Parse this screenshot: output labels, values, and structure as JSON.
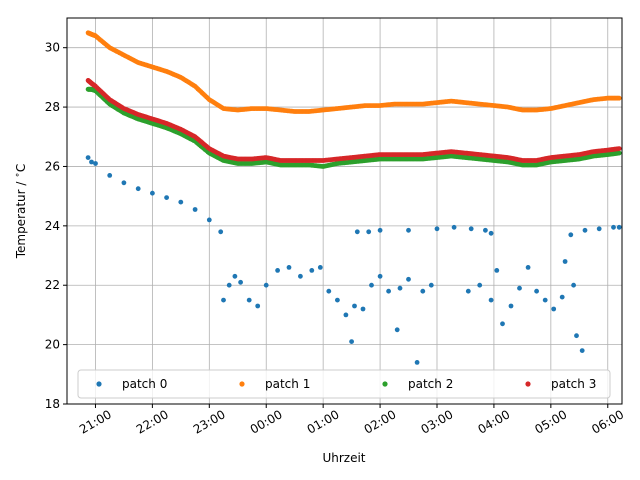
{
  "chart_data": {
    "type": "scatter",
    "xlabel": "Uhrzeit",
    "ylabel": "Temperatur / °C",
    "ylabel_parts": {
      "main": "Temperatur / ",
      "degree": "∘",
      "unit": "C"
    },
    "x_ticks": [
      "21:00",
      "22:00",
      "23:00",
      "00:00",
      "01:00",
      "02:00",
      "03:00",
      "04:00",
      "05:00",
      "06:00"
    ],
    "y_ticks": [
      "18",
      "20",
      "22",
      "24",
      "26",
      "28",
      "30"
    ],
    "x_range_hours": [
      20.5,
      30.25
    ],
    "x_tick_hours": [
      21,
      22,
      23,
      24,
      25,
      26,
      27,
      28,
      29,
      30
    ],
    "ylim": [
      18,
      31
    ],
    "grid": true,
    "legend_position": "bottom",
    "legend": [
      "patch 0",
      "patch 1",
      "patch 2",
      "patch 3"
    ],
    "series": [
      {
        "name": "patch 0",
        "color": "#1f77b4",
        "points": [
          [
            20.87,
            26.3
          ],
          [
            20.93,
            26.15
          ],
          [
            21.0,
            26.1
          ],
          [
            21.25,
            25.7
          ],
          [
            21.5,
            25.45
          ],
          [
            21.75,
            25.25
          ],
          [
            22.0,
            25.1
          ],
          [
            22.25,
            24.95
          ],
          [
            22.5,
            24.8
          ],
          [
            22.75,
            24.55
          ],
          [
            23.0,
            24.2
          ],
          [
            23.2,
            23.8
          ],
          [
            23.25,
            21.5
          ],
          [
            23.35,
            22.0
          ],
          [
            23.45,
            22.3
          ],
          [
            23.55,
            22.1
          ],
          [
            23.7,
            21.5
          ],
          [
            23.85,
            21.3
          ],
          [
            24.0,
            22.0
          ],
          [
            24.2,
            22.5
          ],
          [
            24.4,
            22.6
          ],
          [
            24.6,
            22.3
          ],
          [
            24.8,
            22.5
          ],
          [
            24.95,
            22.6
          ],
          [
            25.1,
            21.8
          ],
          [
            25.25,
            21.5
          ],
          [
            25.4,
            21.0
          ],
          [
            25.55,
            21.3
          ],
          [
            25.7,
            21.2
          ],
          [
            25.85,
            22.0
          ],
          [
            26.0,
            22.3
          ],
          [
            26.15,
            21.8
          ],
          [
            26.35,
            21.9
          ],
          [
            26.5,
            22.2
          ],
          [
            26.75,
            21.8
          ],
          [
            26.9,
            22.0
          ],
          [
            25.6,
            23.8
          ],
          [
            25.8,
            23.8
          ],
          [
            26.0,
            23.85
          ],
          [
            26.5,
            23.85
          ],
          [
            27.0,
            23.9
          ],
          [
            27.3,
            23.95
          ],
          [
            27.6,
            23.9
          ],
          [
            27.85,
            23.85
          ],
          [
            27.95,
            23.75
          ],
          [
            27.55,
            21.8
          ],
          [
            27.75,
            22.0
          ],
          [
            27.95,
            21.5
          ],
          [
            28.15,
            20.7
          ],
          [
            28.3,
            21.3
          ],
          [
            28.45,
            21.9
          ],
          [
            28.6,
            22.6
          ],
          [
            28.75,
            21.8
          ],
          [
            28.9,
            21.5
          ],
          [
            29.05,
            21.2
          ],
          [
            29.2,
            21.6
          ],
          [
            29.4,
            22.0
          ],
          [
            29.35,
            23.7
          ],
          [
            29.6,
            23.85
          ],
          [
            29.85,
            23.9
          ],
          [
            30.1,
            23.95
          ],
          [
            30.2,
            23.95
          ],
          [
            29.45,
            20.3
          ],
          [
            29.55,
            19.8
          ],
          [
            29.25,
            22.8
          ],
          [
            28.05,
            22.5
          ],
          [
            26.3,
            20.5
          ],
          [
            25.5,
            20.1
          ],
          [
            26.65,
            19.4
          ]
        ]
      },
      {
        "name": "patch 1",
        "color": "#ff7f0e",
        "points": [
          [
            20.87,
            30.5
          ],
          [
            20.93,
            30.45
          ],
          [
            21.0,
            30.4
          ],
          [
            21.25,
            30.0
          ],
          [
            21.5,
            29.75
          ],
          [
            21.75,
            29.5
          ],
          [
            22.0,
            29.35
          ],
          [
            22.25,
            29.2
          ],
          [
            22.5,
            29.0
          ],
          [
            22.75,
            28.7
          ],
          [
            23.0,
            28.25
          ],
          [
            23.25,
            27.95
          ],
          [
            23.5,
            27.9
          ],
          [
            23.75,
            27.95
          ],
          [
            24.0,
            27.95
          ],
          [
            24.25,
            27.9
          ],
          [
            24.5,
            27.85
          ],
          [
            24.75,
            27.85
          ],
          [
            25.0,
            27.9
          ],
          [
            25.25,
            27.95
          ],
          [
            25.5,
            28.0
          ],
          [
            25.75,
            28.05
          ],
          [
            26.0,
            28.05
          ],
          [
            26.25,
            28.1
          ],
          [
            26.5,
            28.1
          ],
          [
            26.75,
            28.1
          ],
          [
            27.0,
            28.15
          ],
          [
            27.25,
            28.2
          ],
          [
            27.5,
            28.15
          ],
          [
            27.75,
            28.1
          ],
          [
            28.0,
            28.05
          ],
          [
            28.25,
            28.0
          ],
          [
            28.5,
            27.9
          ],
          [
            28.75,
            27.9
          ],
          [
            29.0,
            27.95
          ],
          [
            29.25,
            28.05
          ],
          [
            29.5,
            28.15
          ],
          [
            29.75,
            28.25
          ],
          [
            30.0,
            28.3
          ],
          [
            30.2,
            28.3
          ]
        ]
      },
      {
        "name": "patch 2",
        "color": "#2ca02c",
        "points": [
          [
            20.87,
            28.6
          ],
          [
            20.93,
            28.6
          ],
          [
            21.0,
            28.55
          ],
          [
            21.25,
            28.1
          ],
          [
            21.5,
            27.8
          ],
          [
            21.75,
            27.6
          ],
          [
            22.0,
            27.45
          ],
          [
            22.25,
            27.3
          ],
          [
            22.5,
            27.1
          ],
          [
            22.75,
            26.85
          ],
          [
            23.0,
            26.45
          ],
          [
            23.25,
            26.2
          ],
          [
            23.5,
            26.1
          ],
          [
            23.75,
            26.1
          ],
          [
            24.0,
            26.15
          ],
          [
            24.25,
            26.05
          ],
          [
            24.5,
            26.05
          ],
          [
            24.75,
            26.05
          ],
          [
            25.0,
            26.0
          ],
          [
            25.25,
            26.1
          ],
          [
            25.5,
            26.15
          ],
          [
            25.75,
            26.2
          ],
          [
            26.0,
            26.25
          ],
          [
            26.25,
            26.25
          ],
          [
            26.5,
            26.25
          ],
          [
            26.75,
            26.25
          ],
          [
            27.0,
            26.3
          ],
          [
            27.25,
            26.35
          ],
          [
            27.5,
            26.3
          ],
          [
            27.75,
            26.25
          ],
          [
            28.0,
            26.2
          ],
          [
            28.25,
            26.15
          ],
          [
            28.5,
            26.05
          ],
          [
            28.75,
            26.05
          ],
          [
            29.0,
            26.15
          ],
          [
            29.25,
            26.2
          ],
          [
            29.5,
            26.25
          ],
          [
            29.75,
            26.35
          ],
          [
            30.0,
            26.4
          ],
          [
            30.2,
            26.45
          ]
        ]
      },
      {
        "name": "patch 3",
        "color": "#d62728",
        "points": [
          [
            20.87,
            28.9
          ],
          [
            20.93,
            28.8
          ],
          [
            21.0,
            28.7
          ],
          [
            21.25,
            28.25
          ],
          [
            21.5,
            27.95
          ],
          [
            21.75,
            27.75
          ],
          [
            22.0,
            27.6
          ],
          [
            22.25,
            27.45
          ],
          [
            22.5,
            27.25
          ],
          [
            22.75,
            27.0
          ],
          [
            23.0,
            26.6
          ],
          [
            23.25,
            26.35
          ],
          [
            23.5,
            26.25
          ],
          [
            23.75,
            26.25
          ],
          [
            24.0,
            26.3
          ],
          [
            24.25,
            26.2
          ],
          [
            24.5,
            26.2
          ],
          [
            24.75,
            26.2
          ],
          [
            25.0,
            26.2
          ],
          [
            25.25,
            26.25
          ],
          [
            25.5,
            26.3
          ],
          [
            25.75,
            26.35
          ],
          [
            26.0,
            26.4
          ],
          [
            26.25,
            26.4
          ],
          [
            26.5,
            26.4
          ],
          [
            26.75,
            26.4
          ],
          [
            27.0,
            26.45
          ],
          [
            27.25,
            26.5
          ],
          [
            27.5,
            26.45
          ],
          [
            27.75,
            26.4
          ],
          [
            28.0,
            26.35
          ],
          [
            28.25,
            26.3
          ],
          [
            28.5,
            26.2
          ],
          [
            28.75,
            26.2
          ],
          [
            29.0,
            26.3
          ],
          [
            29.25,
            26.35
          ],
          [
            29.5,
            26.4
          ],
          [
            29.75,
            26.5
          ],
          [
            30.0,
            26.55
          ],
          [
            30.2,
            26.6
          ]
        ]
      }
    ]
  }
}
